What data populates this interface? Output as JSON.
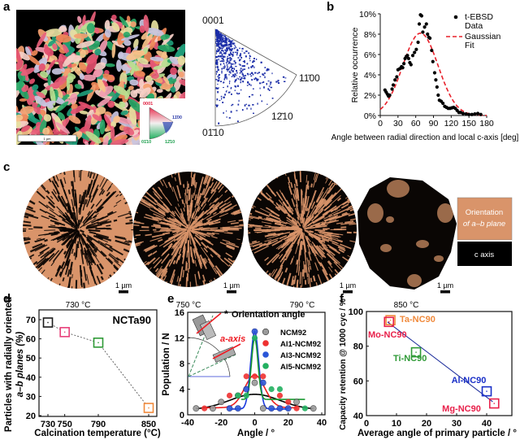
{
  "panel_labels": {
    "a": "a",
    "b": "b",
    "c": "c",
    "d": "d",
    "e": "e",
    "f": "f"
  },
  "panel_a": {
    "scale_bar": "1 µm",
    "inset_legend": [
      "0001",
      "11̄00",
      "01̄10",
      "12̄10"
    ],
    "pole_figure_labels": [
      "0001",
      "11̄00",
      "12̄10",
      "01̄10"
    ],
    "colors": {
      "pole_dots": "#1c2ea8",
      "ebsd_bg": "#000000"
    }
  },
  "panel_c": {
    "particles": [
      {
        "temp": "730 °C",
        "scale": "1 µm"
      },
      {
        "temp": "750 °C",
        "scale": "1 µm"
      },
      {
        "temp": "790 °C",
        "scale": "1 µm"
      },
      {
        "temp": "850 °C",
        "scale": "1 µm"
      }
    ],
    "legend": {
      "ab_line1": "Orientation",
      "ab_line2": "of a–b plane",
      "c_axis": "c axis"
    },
    "colors": {
      "ab": "#d9946a",
      "c": "#000000"
    }
  },
  "chart_data": [
    {
      "id": "b",
      "type": "scatter",
      "xlabel": "Angle between radial direction and local c-axis [deg]",
      "ylabel": "Relative occurrence",
      "xlim": [
        0,
        180
      ],
      "ylim": [
        0,
        10
      ],
      "xticks": [
        "0",
        "30",
        "60",
        "90",
        "120",
        "150",
        "180"
      ],
      "yticks": [
        "0%",
        "2%",
        "4%",
        "6%",
        "8%",
        "10%"
      ],
      "legend": {
        "data_line1": "t-EBSD",
        "data_line2": "Data",
        "fit_line1": "Gaussian",
        "fit_line2": "Fit",
        "placement": "top-right"
      },
      "series": [
        {
          "name": "t-EBSD Data",
          "color": "#000000",
          "x": [
            8,
            10,
            12,
            14,
            16,
            20,
            22,
            25,
            28,
            30,
            33,
            36,
            38,
            40,
            42,
            44,
            46,
            48,
            50,
            52,
            55,
            58,
            61,
            64,
            66,
            68,
            70,
            72,
            75,
            78,
            80,
            82,
            84,
            87,
            89,
            92,
            94,
            96,
            98,
            100,
            103,
            106,
            109,
            112,
            115,
            118,
            121,
            124,
            127,
            130,
            133,
            136,
            140,
            145,
            150,
            155,
            160,
            165,
            170
          ],
          "y": [
            2.5,
            2.3,
            2.1,
            1.9,
            2.0,
            2.6,
            3.0,
            3.5,
            3.8,
            4.5,
            4.6,
            4.8,
            4.7,
            5.1,
            5.6,
            5.8,
            5.9,
            5.6,
            5.2,
            5.0,
            5.9,
            6.2,
            6.5,
            7.2,
            9.0,
            9.9,
            9.8,
            8.2,
            8.7,
            9.0,
            8.0,
            7.7,
            7.6,
            6.4,
            5.3,
            4.2,
            3.5,
            2.8,
            2.0,
            1.5,
            1.4,
            1.2,
            0.9,
            0.8,
            0.7,
            0.7,
            0.75,
            0.8,
            0.7,
            0.5,
            0.3,
            0.3,
            0.2,
            0.15,
            0.1,
            0.1,
            0.15,
            0.2,
            0.1
          ]
        },
        {
          "name": "Gaussian Fit",
          "color": "#e8202a",
          "mean": 68,
          "peak": 8.1,
          "sigma": 29.8
        }
      ]
    },
    {
      "id": "d",
      "type": "line",
      "title": "NCTa90",
      "xlabel": "Calcination temperature (°C)",
      "ylabel_line1": "Particles with radially oriented",
      "ylabel_line2": "a–b planes (%)",
      "xlim": [
        722,
        862
      ],
      "ylim": [
        20,
        75
      ],
      "xticks": [
        "730",
        "750",
        "790",
        "850"
      ],
      "yticks": [
        "20",
        "30",
        "40",
        "50",
        "60",
        "70"
      ],
      "x": [
        730,
        750,
        790,
        850
      ],
      "y": [
        68.5,
        63.5,
        58,
        24
      ],
      "colors": [
        "#1a1a1a",
        "#e8407a",
        "#2e9a36",
        "#f08a3c"
      ]
    },
    {
      "id": "e",
      "type": "scatter",
      "xlabel": "Angle / °",
      "ylabel": "Population / N",
      "xlim": [
        -40,
        40
      ],
      "ylim": [
        0,
        16
      ],
      "xticks": [
        "-40",
        "-20",
        "0",
        "20",
        "40"
      ],
      "yticks": [
        "0",
        "4",
        "8",
        "12",
        "16"
      ],
      "annotations": {
        "orientation": "Orientation angle",
        "star": "*",
        "a_axis": "a-axis"
      },
      "series": [
        {
          "name": "NCM92",
          "color": "#9a9a9a",
          "line": "#000000",
          "x": [
            -35,
            -25,
            -20,
            -10,
            0,
            5,
            25,
            35
          ],
          "y": [
            1,
            1,
            2,
            3,
            5,
            1,
            2,
            1
          ],
          "fit": {
            "base": 0.8,
            "peak": 3.2,
            "sigma": 15,
            "from": -35,
            "to": 35
          }
        },
        {
          "name": "Al1-NCM92",
          "color": "#ee3030",
          "line": "#ee2020",
          "x": [
            -30,
            -15,
            -5,
            0,
            5,
            15,
            20,
            25
          ],
          "y": [
            1,
            3,
            6,
            6,
            6,
            3,
            2,
            1
          ],
          "fit": {
            "base": 1.1,
            "peak": 6.2,
            "sigma": 6,
            "from": -30,
            "to": 25
          }
        },
        {
          "name": "Al3-NCM92",
          "color": "#2a56d8",
          "line": "#1a3ae0",
          "x": [
            -15,
            -10,
            -5,
            0,
            5,
            10,
            15,
            20
          ],
          "y": [
            1,
            1,
            4,
            13,
            5,
            1,
            1,
            1
          ],
          "fit": {
            "base": 0.9,
            "peak": 13,
            "sigma": 2.4,
            "from": -15,
            "to": 20
          }
        },
        {
          "name": "Al5-NCM92",
          "color": "#22b060",
          "line": "#1a9a30",
          "x": [
            -10,
            -5,
            0,
            10,
            15,
            30
          ],
          "y": [
            3,
            3,
            12,
            4,
            4,
            1
          ],
          "fit": {
            "base": 2.4,
            "peak": 12,
            "sigma": 1.9,
            "from": -8,
            "to": 30
          }
        }
      ]
    },
    {
      "id": "f",
      "type": "scatter",
      "xlabel": "Average angle of primary particle / °",
      "ylabel": "Capacity retention @ 1000 cyc / %",
      "xlim": [
        0,
        45
      ],
      "ylim": [
        40,
        100
      ],
      "xticks": [
        "0",
        "10",
        "20",
        "30",
        "40"
      ],
      "yticks": [
        "40",
        "60",
        "80",
        "100"
      ],
      "points": [
        {
          "label": "Ta-NC90",
          "x": 8,
          "y": 95,
          "color": "#f08a3c"
        },
        {
          "label": "Mo-NC90",
          "x": 7.5,
          "y": 94,
          "color": "#e8204a"
        },
        {
          "label": "Ti-NC90",
          "x": 16.5,
          "y": 76.5,
          "color": "#2e9a36"
        },
        {
          "label": "Al-NC90",
          "x": 40,
          "y": 54,
          "color": "#1a30c8"
        },
        {
          "label": "Mg-NC90",
          "x": 42.5,
          "y": 47,
          "color": "#e8204a"
        }
      ],
      "trend": {
        "x": [
          7,
          42
        ],
        "y": [
          94,
          48
        ],
        "color": "#1a2a9a"
      }
    }
  ]
}
